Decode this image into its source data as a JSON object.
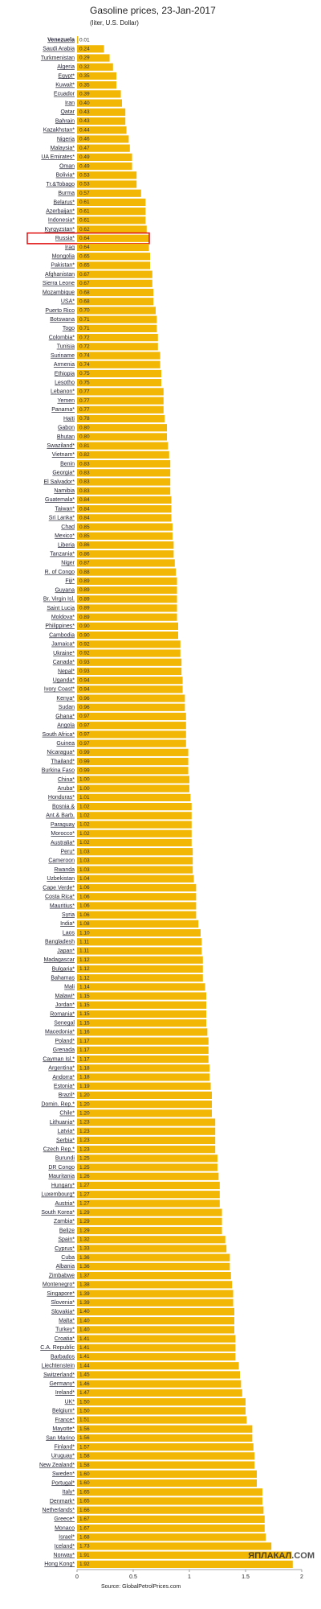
{
  "chart_data": {
    "type": "barh",
    "title": "Gasoline prices, 23-Jan-2017",
    "subtitle": "(liter, U.S. Dollar)",
    "source": "Source: GlobalPetrolPrices.com",
    "watermark": "ЯПЛАКАЛ.COM",
    "color": "#f2b705",
    "highlighted": "Russia*",
    "highlight_color": "#e01010",
    "xlim": [
      0,
      2
    ],
    "xticks": [
      0,
      0.5,
      1,
      1.5,
      2
    ],
    "categories": [
      "Venezuela",
      "Saudi Arabia",
      "Turkmenistan",
      "Algeria",
      "Egypt*",
      "Kuwait*",
      "Ecuador",
      "Iran",
      "Qatar",
      "Bahrain",
      "Kazakhstan*",
      "Nigeria",
      "Malaysia*",
      "UA Emirates*",
      "Oman",
      "Bolivia*",
      "Tr.&Tobago",
      "Burma",
      "Belarus*",
      "Azerbaijan*",
      "Indonesia*",
      "Kyrgyzstan*",
      "Russia*",
      "Iraq",
      "Mongolia",
      "Pakistan*",
      "Afghanistan",
      "Sierra Leone",
      "Mozambique",
      "USA*",
      "Puerto Rico",
      "Botswana",
      "Togo",
      "Colombia*",
      "Tunisia",
      "Suriname",
      "Armenia",
      "Ethiopia",
      "Lesotho",
      "Lebanon*",
      "Yemen",
      "Panama*",
      "Haiti",
      "Gabon",
      "Bhutan",
      "Swaziland*",
      "Vietnam*",
      "Benin",
      "Georgia*",
      "El Salvador*",
      "Namibia",
      "Guatemala*",
      "Taiwan*",
      "Sri Lanka*",
      "Chad",
      "Mexico*",
      "Liberia",
      "Tanzania*",
      "Niger",
      "R. of Congo",
      "Fiji*",
      "Guyana",
      "Br. Virgin Isl.",
      "Saint Lucia",
      "Moldova*",
      "Philippines*",
      "Cambodia",
      "Jamaica*",
      "Ukraine*",
      "Canada*",
      "Nepal*",
      "Uganda*",
      "Ivory Coast*",
      "Kenya*",
      "Sudan",
      "Ghana*",
      "Angola",
      "South Africa*",
      "Guinea",
      "Nicaragua*",
      "Thailand*",
      "Burkina Faso",
      "China*",
      "Aruba*",
      "Honduras*",
      "Bosnia &",
      "Ant.& Barb.",
      "Paraguay",
      "Morocco*",
      "Australia*",
      "Peru*",
      "Cameroon",
      "Rwanda",
      "Uzbekistan",
      "Cape Verde*",
      "Costa Rica*",
      "Mauritius*",
      "Syria",
      "India*",
      "Laos",
      "Bangladesh",
      "Japan*",
      "Madagascar",
      "Bulgaria*",
      "Bahamas",
      "Mali",
      "Malawi*",
      "Jordan*",
      "Romania*",
      "Senegal",
      "Macedonia*",
      "Poland*",
      "Grenada",
      "Cayman Isl.*",
      "Argentina*",
      "Andorra*",
      "Estonia*",
      "Brazil*",
      "Domin. Rep.*",
      "Chile*",
      "Lithuania*",
      "Latvia*",
      "Serbia*",
      "Czech Rep.*",
      "Burundi",
      "DR Congo",
      "Mauritania",
      "Hungary*",
      "Luxembourg*",
      "Austria*",
      "South Korea*",
      "Zambia*",
      "Belize",
      "Spain*",
      "Cyprus*",
      "Cuba",
      "Albania",
      "Zimbabwe",
      "Montenegro*",
      "Singapore*",
      "Slovenia*",
      "Slovakia*",
      "Malta*",
      "Turkey*",
      "Croatia*",
      "C.A. Republic",
      "Barbados",
      "Liechtenstein",
      "Switzerland*",
      "Germany*",
      "Ireland*",
      "UK*",
      "Belgium*",
      "France*",
      "Mayotte*",
      "San Marino",
      "Finland*",
      "Uruguay*",
      "New Zealand*",
      "Sweden*",
      "Portugal*",
      "Italy*",
      "Denmark*",
      "Netherlands*",
      "Greece*",
      "Monaco",
      "Israel*",
      "Iceland*",
      "Norway*",
      "Hong Kong*"
    ],
    "values": [
      0.01,
      0.24,
      0.29,
      0.32,
      0.35,
      0.35,
      0.39,
      0.4,
      0.43,
      0.43,
      0.44,
      0.46,
      0.47,
      0.49,
      0.49,
      0.53,
      0.53,
      0.57,
      0.61,
      0.61,
      0.61,
      0.62,
      0.64,
      0.64,
      0.65,
      0.65,
      0.67,
      0.67,
      0.68,
      0.68,
      0.7,
      0.71,
      0.71,
      0.72,
      0.72,
      0.74,
      0.74,
      0.75,
      0.75,
      0.77,
      0.77,
      0.77,
      0.78,
      0.8,
      0.8,
      0.81,
      0.82,
      0.83,
      0.83,
      0.83,
      0.83,
      0.84,
      0.84,
      0.84,
      0.85,
      0.85,
      0.86,
      0.86,
      0.87,
      0.88,
      0.89,
      0.89,
      0.89,
      0.89,
      0.89,
      0.9,
      0.9,
      0.92,
      0.92,
      0.93,
      0.93,
      0.94,
      0.94,
      0.96,
      0.96,
      0.97,
      0.97,
      0.97,
      0.97,
      0.99,
      0.99,
      0.99,
      1.0,
      1.0,
      1.01,
      1.02,
      1.02,
      1.02,
      1.02,
      1.02,
      1.03,
      1.03,
      1.03,
      1.04,
      1.06,
      1.06,
      1.06,
      1.06,
      1.08,
      1.1,
      1.11,
      1.11,
      1.12,
      1.12,
      1.12,
      1.14,
      1.15,
      1.15,
      1.15,
      1.15,
      1.16,
      1.17,
      1.17,
      1.17,
      1.18,
      1.18,
      1.19,
      1.2,
      1.2,
      1.2,
      1.23,
      1.23,
      1.23,
      1.23,
      1.25,
      1.25,
      1.26,
      1.27,
      1.27,
      1.27,
      1.29,
      1.29,
      1.29,
      1.32,
      1.33,
      1.36,
      1.36,
      1.37,
      1.38,
      1.39,
      1.39,
      1.4,
      1.4,
      1.4,
      1.41,
      1.41,
      1.41,
      1.44,
      1.45,
      1.46,
      1.47,
      1.5,
      1.5,
      1.51,
      1.56,
      1.56,
      1.57,
      1.58,
      1.58,
      1.6,
      1.6,
      1.65,
      1.65,
      1.66,
      1.67,
      1.67,
      1.68,
      1.73,
      1.91,
      1.92
    ],
    "value_labels": [
      "0.01",
      "0.24",
      "0.29",
      "0.32",
      "0.35",
      "0.35",
      "0.39",
      "0.40",
      "0.43",
      "0.43",
      "0.44",
      "0.46",
      "0.47",
      "0.49",
      "0.49",
      "0.53",
      "0.53",
      "0.57",
      "0.61",
      "0.61",
      "0.61",
      "0.62",
      "0.64",
      "0.64",
      "0.65",
      "0.65",
      "0.67",
      "0.67",
      "0.68",
      "0.68",
      "0.70",
      "0.71",
      "0.71",
      "0.72",
      "0.72",
      "0.74",
      "0.74",
      "0.75",
      "0.75",
      "0.77",
      "0.77",
      "0.77",
      "0.78",
      "0.80",
      "0.80",
      "0.81",
      "0.82",
      "0.83",
      "0.83",
      "0.83",
      "0.83",
      "0.84",
      "0.84",
      "0.84",
      "0.85",
      "0.85",
      "0.86",
      "0.86",
      "0.87",
      "0.88",
      "0.89",
      "0.89",
      "0.89",
      "0.89",
      "0.89",
      "0.90",
      "0.90",
      "0.92",
      "0.92",
      "0.93",
      "0.93",
      "0.94",
      "0.94",
      "0.96",
      "0.96",
      "0.97",
      "0.97",
      "0.97",
      "0.97",
      "0.99",
      "0.99",
      "0.99",
      "1.00",
      "1.00",
      "1.01",
      "1.02",
      "1.02",
      "1.02",
      "1.02",
      "1.02",
      "1.03",
      "1.03",
      "1.03",
      "1.04",
      "1.06",
      "1.06",
      "1.06",
      "1.06",
      "1.08",
      "1.10",
      "1.11",
      "1.11",
      "1.12",
      "1.12",
      "1.12",
      "1.14",
      "1.15",
      "1.15",
      "1.15",
      "1.15",
      "1.16",
      "1.17",
      "1.17",
      "1.17",
      "1.18",
      "1.18",
      "1.19",
      "1.20",
      "1.20",
      "1.20",
      "1.23",
      "1.23",
      "1.23",
      "1.23",
      "1.25",
      "1.25",
      "1.26",
      "1.27",
      "1.27",
      "1.27",
      "1.29",
      "1.29",
      "1.29",
      "1.32",
      "1.33",
      "1.36",
      "1.36",
      "1.37",
      "1.38",
      "1.39",
      "1.39",
      "1.40",
      "1.40",
      "1.40",
      "1.41",
      "1.41",
      "1.41",
      "1.44",
      "1.45",
      "1.46",
      "1.47",
      "1.50",
      "1.50",
      "1.51",
      "1.56",
      "1.56",
      "1.57",
      "1.58",
      "1.58",
      "1.60",
      "1.60",
      "1.65",
      "1.65",
      "1.66",
      "1.67",
      "1.67",
      "1.68",
      "1.73",
      "1.91",
      "1.92"
    ]
  }
}
